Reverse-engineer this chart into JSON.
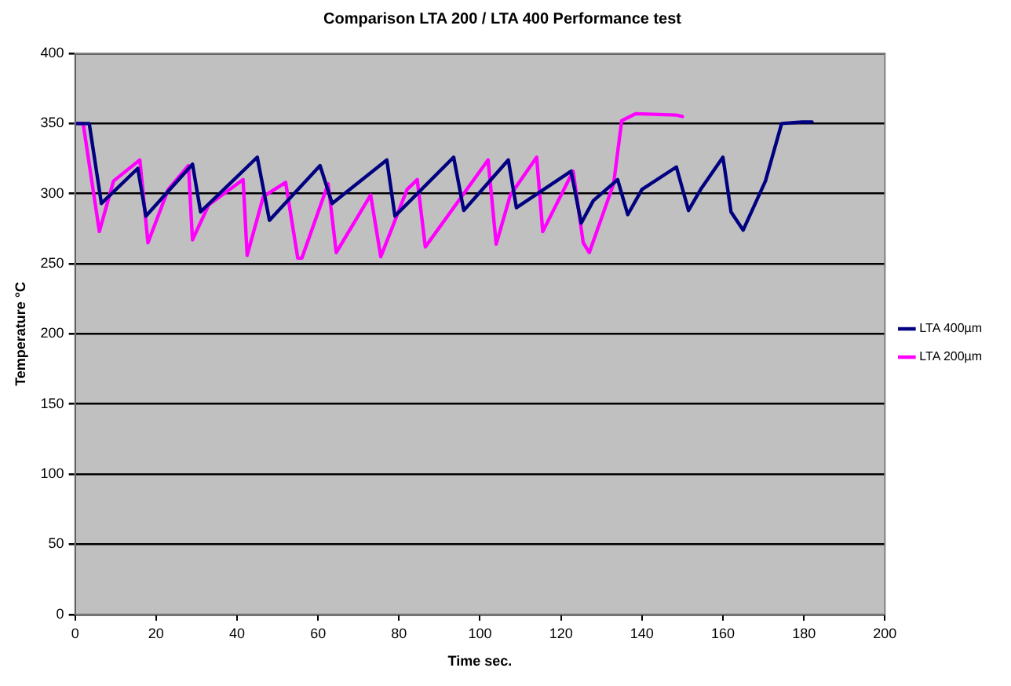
{
  "chart_data": {
    "type": "line",
    "title": "Comparison LTA 200 / LTA 400 Performance test",
    "xlabel": "Time sec.",
    "ylabel": "Temperature °C",
    "xlim": [
      0,
      200
    ],
    "xticks": [
      0,
      20,
      40,
      60,
      80,
      100,
      120,
      140,
      160,
      180,
      200
    ],
    "ylim": [
      0,
      400
    ],
    "yticks": [
      0,
      50,
      100,
      150,
      200,
      250,
      300,
      350,
      400
    ],
    "grid": "y",
    "legend": "right",
    "marker": "none",
    "line_style": "solid",
    "series": [
      {
        "name": "LTA 400µm",
        "color": "#000080",
        "x": [
          0,
          3.5,
          6.5,
          15.5,
          17.5,
          29,
          31,
          45,
          48,
          60.5,
          63.5,
          77,
          79,
          93.5,
          96,
          107,
          109,
          122.5,
          125,
          128,
          134,
          136.5,
          140,
          148.5,
          151.5,
          154.5,
          160,
          162,
          165,
          170.5,
          174.5,
          179.5,
          182
        ],
        "values": [
          350,
          350,
          293,
          318,
          284,
          321,
          287,
          326,
          281,
          320,
          293,
          324,
          284,
          326,
          288,
          324,
          290,
          316,
          279,
          295,
          310,
          285,
          303,
          319,
          288,
          303,
          326,
          287,
          274,
          309,
          350,
          351,
          351
        ]
      },
      {
        "name": "LTA 200µm",
        "color": "#ff00ff",
        "x": [
          0,
          2,
          6,
          9.5,
          16,
          18,
          23,
          28,
          29,
          33,
          41.5,
          42.5,
          46.5,
          52,
          55,
          56,
          62.5,
          64.5,
          73,
          75.5,
          82,
          84.5,
          86.5,
          102,
          104,
          107.5,
          114,
          115.5,
          123,
          125.5,
          127,
          133,
          135,
          138.5,
          148.5,
          150
        ],
        "values": [
          350,
          350,
          273,
          309,
          324,
          265,
          303,
          320,
          267,
          292,
          310,
          256,
          298,
          308,
          254,
          254,
          307,
          258,
          299,
          255,
          303,
          310,
          262,
          324,
          264,
          299,
          326,
          273,
          316,
          265,
          258,
          307,
          352,
          357,
          356,
          355
        ]
      }
    ]
  }
}
